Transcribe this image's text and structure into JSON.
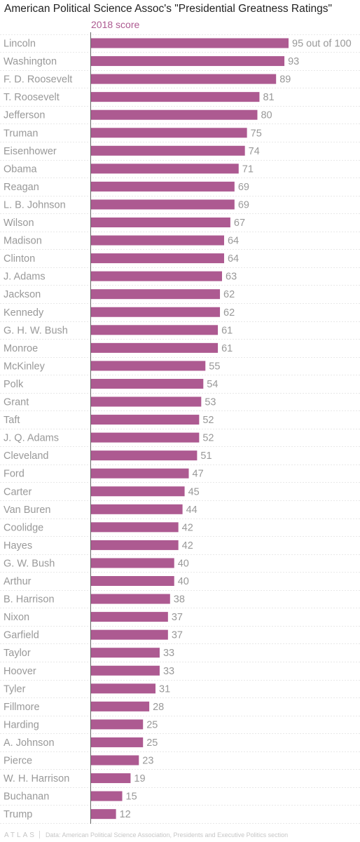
{
  "title": "American Political Science Assoc's \"Presidential Greatness Ratings\"",
  "footer": {
    "brand": "ATLAS",
    "source": "Data: American Political Science Association, Presidents and Executive Politics section"
  },
  "colors": {
    "bar": "#ad5a91",
    "label": "#999999",
    "series_label": "#ad5a91",
    "axis": "#666666",
    "grid": "#e8e8e8"
  },
  "chart_data": {
    "type": "bar",
    "orientation": "horizontal",
    "title": "American Political Science Assoc's \"Presidential Greatness Ratings\"",
    "series": [
      {
        "name": "2018 score"
      }
    ],
    "first_value_label": "95 out of 100",
    "xlim": [
      0,
      100
    ],
    "grid": true,
    "categories": [
      "Lincoln",
      "Washington",
      "F. D. Roosevelt",
      "T. Roosevelt",
      "Jefferson",
      "Truman",
      "Eisenhower",
      "Obama",
      "Reagan",
      "L. B. Johnson",
      "Wilson",
      "Madison",
      "Clinton",
      "J. Adams",
      "Jackson",
      "Kennedy",
      "G. H. W. Bush",
      "Monroe",
      "McKinley",
      "Polk",
      "Grant",
      "Taft",
      "J. Q. Adams",
      "Cleveland",
      "Ford",
      "Carter",
      "Van Buren",
      "Coolidge",
      "Hayes",
      "G. W. Bush",
      "Arthur",
      "B. Harrison",
      "Nixon",
      "Garfield",
      "Taylor",
      "Hoover",
      "Tyler",
      "Fillmore",
      "Harding",
      "A. Johnson",
      "Pierce",
      "W. H. Harrison",
      "Buchanan",
      "Trump"
    ],
    "values": [
      95,
      93,
      89,
      81,
      80,
      75,
      74,
      71,
      69,
      69,
      67,
      64,
      64,
      63,
      62,
      62,
      61,
      61,
      55,
      54,
      53,
      52,
      52,
      51,
      47,
      45,
      44,
      42,
      42,
      40,
      40,
      38,
      37,
      37,
      33,
      33,
      31,
      28,
      25,
      25,
      23,
      19,
      15,
      12
    ]
  }
}
